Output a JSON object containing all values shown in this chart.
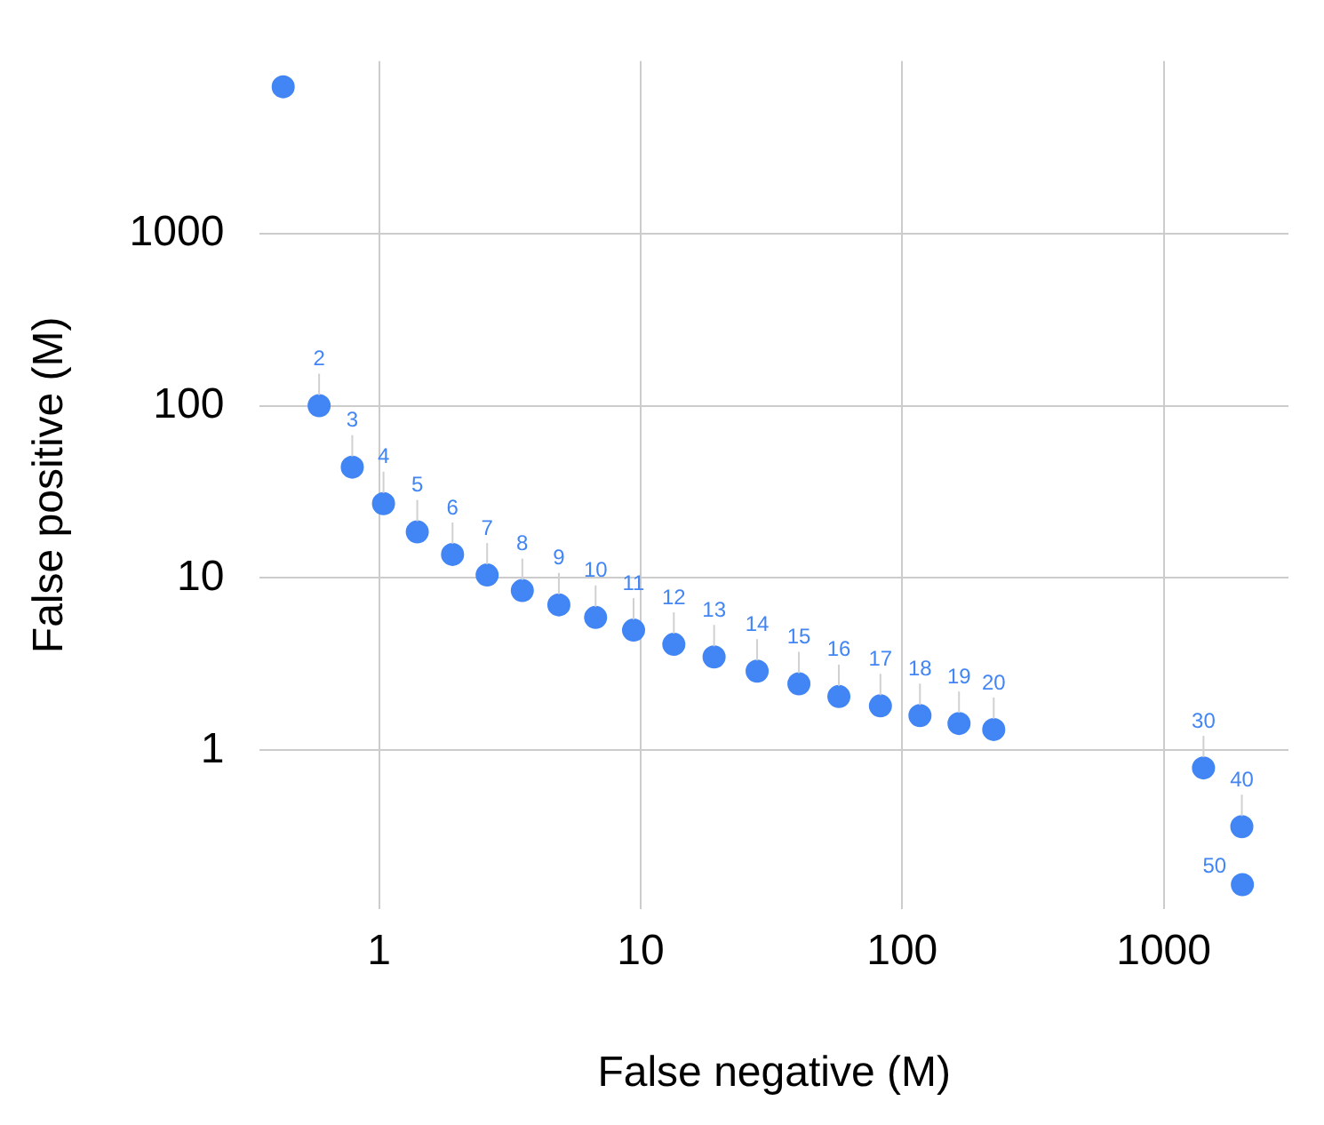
{
  "chart_data": {
    "type": "scatter",
    "xlabel": "False negative (M)",
    "ylabel": "False positive (M)",
    "log": "xy",
    "xlim": [
      0.35,
      3000
    ],
    "ylim": [
      0.12,
      10000
    ],
    "xticks": [
      1,
      10,
      100,
      1000
    ],
    "yticks": [
      1,
      10,
      100,
      1000
    ],
    "grid": true,
    "legend": false,
    "marker": "circle",
    "series": [
      {
        "color": "#4285f4",
        "x": [
          0.43,
          0.59,
          0.79,
          1.04,
          1.4,
          1.91,
          2.59,
          3.53,
          4.87,
          6.73,
          9.4,
          13.4,
          19.1,
          27.9,
          40.3,
          57.3,
          82.6,
          117,
          165,
          224,
          1420,
          1990,
          2000
        ],
        "values": [
          7100,
          100,
          44,
          27,
          18.5,
          13.7,
          10.4,
          8.45,
          6.98,
          5.9,
          4.98,
          4.12,
          3.48,
          2.88,
          2.43,
          2.05,
          1.81,
          1.59,
          1.43,
          1.32,
          0.79,
          0.36,
          0.166
        ]
      }
    ],
    "annotations": [
      {
        "text": "2",
        "x": 0.59,
        "y": 100
      },
      {
        "text": "3",
        "x": 0.79,
        "y": 44
      },
      {
        "text": "4",
        "x": 1.04,
        "y": 27
      },
      {
        "text": "5",
        "x": 1.4,
        "y": 18.5
      },
      {
        "text": "6",
        "x": 1.91,
        "y": 13.7
      },
      {
        "text": "7",
        "x": 2.59,
        "y": 10.4
      },
      {
        "text": "8",
        "x": 3.53,
        "y": 8.45
      },
      {
        "text": "9",
        "x": 4.87,
        "y": 6.98
      },
      {
        "text": "10",
        "x": 6.73,
        "y": 5.9
      },
      {
        "text": "11",
        "x": 9.4,
        "y": 4.98
      },
      {
        "text": "12",
        "x": 13.4,
        "y": 4.12
      },
      {
        "text": "13",
        "x": 19.1,
        "y": 3.48
      },
      {
        "text": "14",
        "x": 27.9,
        "y": 2.88
      },
      {
        "text": "15",
        "x": 40.3,
        "y": 2.43
      },
      {
        "text": "16",
        "x": 57.3,
        "y": 2.05
      },
      {
        "text": "17",
        "x": 82.6,
        "y": 1.81
      },
      {
        "text": "18",
        "x": 117,
        "y": 1.59
      },
      {
        "text": "19",
        "x": 165,
        "y": 1.43
      },
      {
        "text": "20",
        "x": 224,
        "y": 1.32
      },
      {
        "text": "30",
        "x": 1420,
        "y": 0.79
      },
      {
        "text": "40",
        "x": 1990,
        "y": 0.36
      },
      {
        "text": "50",
        "x": 2000,
        "y": 0.166
      }
    ]
  }
}
